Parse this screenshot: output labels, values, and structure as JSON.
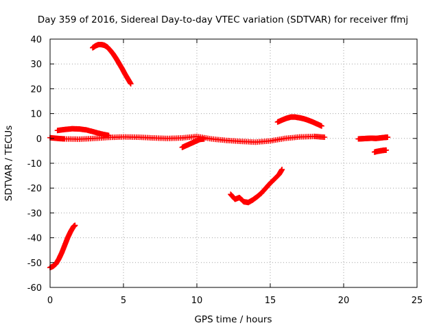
{
  "chart_data": {
    "type": "scatter",
    "title": "Day 359 of 2016, Sidereal Day-to-day VTEC variation (SDTVAR) for receiver ffmj",
    "xlabel": "GPS time / hours",
    "ylabel": "SDTVAR / TECUs",
    "xlim": [
      0,
      25
    ],
    "ylim": [
      -60,
      40
    ],
    "xticks": [
      0,
      5,
      10,
      15,
      20,
      25
    ],
    "yticks": [
      -60,
      -50,
      -40,
      -30,
      -20,
      -10,
      0,
      10,
      20,
      30,
      40
    ],
    "grid": true,
    "marker": "plus",
    "color": "#ff0000",
    "series": [
      {
        "x": [
          0.0,
          0.2,
          0.4,
          0.6,
          0.8,
          1.0,
          1.2,
          1.4,
          1.6,
          1.7
        ],
        "y": [
          -52,
          -51.5,
          -50.5,
          -48.5,
          -46,
          -43,
          -40,
          -37.5,
          -35.5,
          -35
        ]
      },
      {
        "x": [
          2.9,
          3.1,
          3.3,
          3.5,
          3.7,
          3.9,
          4.1,
          4.3,
          4.5,
          4.7,
          4.9,
          5.1,
          5.3,
          5.5
        ],
        "y": [
          36.5,
          37.3,
          37.8,
          37.8,
          37.5,
          36.8,
          35.5,
          34,
          32.2,
          30.2,
          28.2,
          26,
          24,
          22
        ]
      },
      {
        "x": [
          0.5,
          1.0,
          1.5,
          2.0,
          2.5,
          3.0,
          3.5,
          4.0
        ],
        "y": [
          3.2,
          3.6,
          3.9,
          3.8,
          3.4,
          2.6,
          1.8,
          1.2
        ]
      },
      {
        "x": [
          0.0,
          0.5,
          1.0,
          2.0,
          3.0,
          4.0,
          5.0,
          6.0,
          7.0,
          8.0,
          9.0,
          10.0,
          11.0,
          12.0,
          13.0,
          14.0,
          15.0,
          16.0,
          17.0,
          18.0,
          18.7
        ],
        "y": [
          0.3,
          0.0,
          -0.2,
          -0.3,
          0.0,
          0.4,
          0.6,
          0.5,
          0.2,
          0.0,
          0.2,
          0.8,
          -0.2,
          -0.8,
          -1.2,
          -1.5,
          -1.0,
          0.0,
          0.6,
          0.8,
          0.5
        ]
      },
      {
        "x": [
          9.0,
          9.3,
          9.6,
          9.9,
          10.2,
          10.5
        ],
        "y": [
          -3.6,
          -2.8,
          -2.0,
          -1.2,
          -0.4,
          -0.2
        ]
      },
      {
        "x": [
          12.3,
          12.6,
          12.9,
          13.2,
          13.5,
          13.8,
          14.1,
          14.4,
          14.7,
          15.0,
          15.3,
          15.6,
          15.8
        ],
        "y": [
          -22.5,
          -24.5,
          -23.8,
          -25.5,
          -25.8,
          -24.8,
          -23.5,
          -22,
          -20,
          -18,
          -16.3,
          -14.5,
          -12.5
        ]
      },
      {
        "x": [
          15.5,
          15.8,
          16.1,
          16.4,
          16.7,
          17.0,
          17.3,
          17.6,
          17.9,
          18.2,
          18.5
        ],
        "y": [
          6.6,
          7.4,
          8.1,
          8.6,
          8.6,
          8.3,
          7.9,
          7.3,
          6.6,
          5.8,
          5.0
        ]
      },
      {
        "x": [
          21.0,
          21.3,
          21.6,
          21.9,
          22.2,
          22.5,
          22.8,
          23.0
        ],
        "y": [
          -0.2,
          -0.1,
          0.0,
          0.1,
          0.0,
          0.2,
          0.4,
          0.5
        ]
      },
      {
        "x": [
          22.1,
          22.3,
          22.5,
          22.7,
          22.9
        ],
        "y": [
          -5.5,
          -5.2,
          -5.0,
          -4.8,
          -4.7
        ]
      }
    ]
  }
}
